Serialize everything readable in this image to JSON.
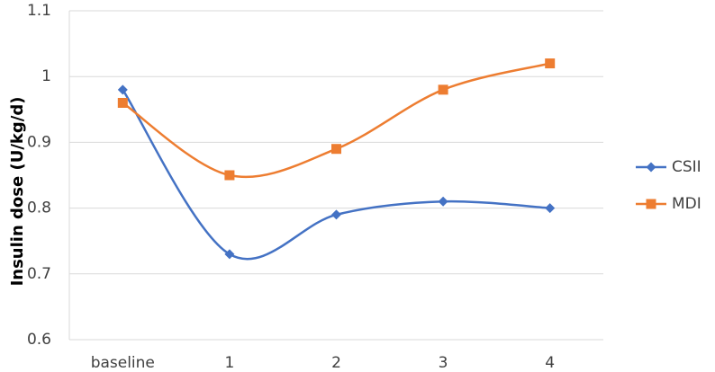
{
  "chart_data": {
    "type": "line",
    "y_label": "Insulin dose (U/kg/d)",
    "categories": [
      "baseline",
      "1",
      "2",
      "3",
      "4"
    ],
    "series": [
      {
        "name": "CSII",
        "color": "#4472c4",
        "marker": "diamond",
        "values": [
          0.98,
          0.73,
          0.79,
          0.81,
          0.8
        ]
      },
      {
        "name": "MDI",
        "color": "#ed7d31",
        "marker": "square",
        "values": [
          0.96,
          0.85,
          0.89,
          0.98,
          1.02
        ]
      }
    ],
    "ylim": [
      0.6,
      1.1
    ],
    "yticks": [
      0.6,
      0.7,
      0.8,
      0.9,
      1,
      1.1
    ],
    "grid": true,
    "smooth": true,
    "legend": "right"
  }
}
